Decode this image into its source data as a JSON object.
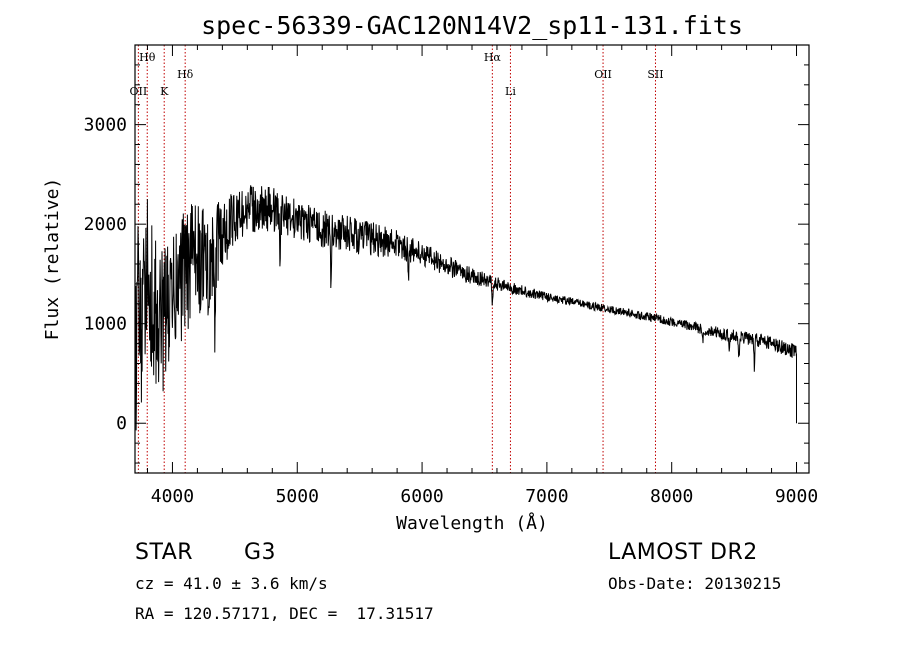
{
  "colors": {
    "background": "#ffffff",
    "foreground": "#000000",
    "line_marker": "#c00000"
  },
  "chart_data": {
    "type": "line",
    "title": "spec-56339-GAC120N14V2_sp11-131.fits",
    "xlabel": "Wavelength (Å)",
    "ylabel": "Flux (relative)",
    "xlim": [
      3700,
      9100
    ],
    "ylim": [
      -500,
      3800
    ],
    "x_ticks": [
      4000,
      5000,
      6000,
      7000,
      8000,
      9000
    ],
    "y_ticks": [
      0,
      1000,
      2000,
      3000
    ],
    "grid": false,
    "line_markers": [
      {
        "label": "Hθ",
        "x": 3798,
        "tier": "high"
      },
      {
        "label": "OII",
        "x": 3727,
        "tier": "low"
      },
      {
        "label": "K",
        "x": 3934,
        "tier": "low"
      },
      {
        "label": "Hδ",
        "x": 4102,
        "tier": "mid"
      },
      {
        "label": "Hα",
        "x": 6563,
        "tier": "high"
      },
      {
        "label": "Li",
        "x": 6708,
        "tier": "low"
      },
      {
        "label": "OII",
        "x": 7450,
        "tier": "mid"
      },
      {
        "label": "SII",
        "x": 7870,
        "tier": "mid"
      }
    ],
    "series": [
      {
        "anchors": [
          [
            3700,
            400
          ],
          [
            3720,
            1300
          ],
          [
            3740,
            1100
          ],
          [
            3760,
            700
          ],
          [
            3780,
            1500
          ],
          [
            3800,
            1600
          ],
          [
            3850,
            1100
          ],
          [
            3900,
            1000
          ],
          [
            3950,
            1100
          ],
          [
            4000,
            1200
          ],
          [
            4050,
            1400
          ],
          [
            4100,
            1500
          ],
          [
            4150,
            1600
          ],
          [
            4200,
            1700
          ],
          [
            4250,
            1650
          ],
          [
            4300,
            1500
          ],
          [
            4350,
            1750
          ],
          [
            4400,
            1900
          ],
          [
            4450,
            2000
          ],
          [
            4500,
            2050
          ],
          [
            4600,
            2150
          ],
          [
            4700,
            2150
          ],
          [
            4800,
            2150
          ],
          [
            5000,
            2050
          ],
          [
            5200,
            1950
          ],
          [
            5400,
            1900
          ],
          [
            5600,
            1850
          ],
          [
            5800,
            1800
          ],
          [
            6000,
            1700
          ],
          [
            6200,
            1580
          ],
          [
            6400,
            1480
          ],
          [
            6600,
            1400
          ],
          [
            6800,
            1330
          ],
          [
            7000,
            1270
          ],
          [
            7200,
            1220
          ],
          [
            7400,
            1170
          ],
          [
            7600,
            1120
          ],
          [
            7800,
            1070
          ],
          [
            8000,
            1020
          ],
          [
            8200,
            960
          ],
          [
            8400,
            900
          ],
          [
            8600,
            860
          ],
          [
            8800,
            800
          ],
          [
            8950,
            740
          ],
          [
            9000,
            700
          ]
        ],
        "noise": [
          [
            3700,
            900
          ],
          [
            3900,
            750
          ],
          [
            4100,
            650
          ],
          [
            4300,
            500
          ],
          [
            4500,
            260
          ],
          [
            4800,
            220
          ],
          [
            5000,
            200
          ],
          [
            5500,
            190
          ],
          [
            6000,
            120
          ],
          [
            6500,
            75
          ],
          [
            7000,
            45
          ],
          [
            7500,
            38
          ],
          [
            8000,
            45
          ],
          [
            8500,
            65
          ],
          [
            9000,
            75
          ]
        ],
        "dips": [
          [
            4227,
            500
          ],
          [
            4340,
            850
          ],
          [
            4861,
            550
          ],
          [
            5270,
            400
          ],
          [
            5890,
            250
          ],
          [
            6563,
            250
          ],
          [
            8250,
            120
          ],
          [
            8460,
            150
          ],
          [
            8540,
            250
          ],
          [
            8662,
            260
          ]
        ],
        "end_drop": {
          "x": 9000,
          "y": 0
        }
      }
    ]
  },
  "info": {
    "object_class": "STAR",
    "subclass": "G3",
    "survey": "LAMOST DR2",
    "redshift": "cz = 41.0 ± 3.6 km/s",
    "obs_date": "Obs-Date: 20130215",
    "coordinates": "RA = 120.57171, DEC =  17.31517"
  }
}
